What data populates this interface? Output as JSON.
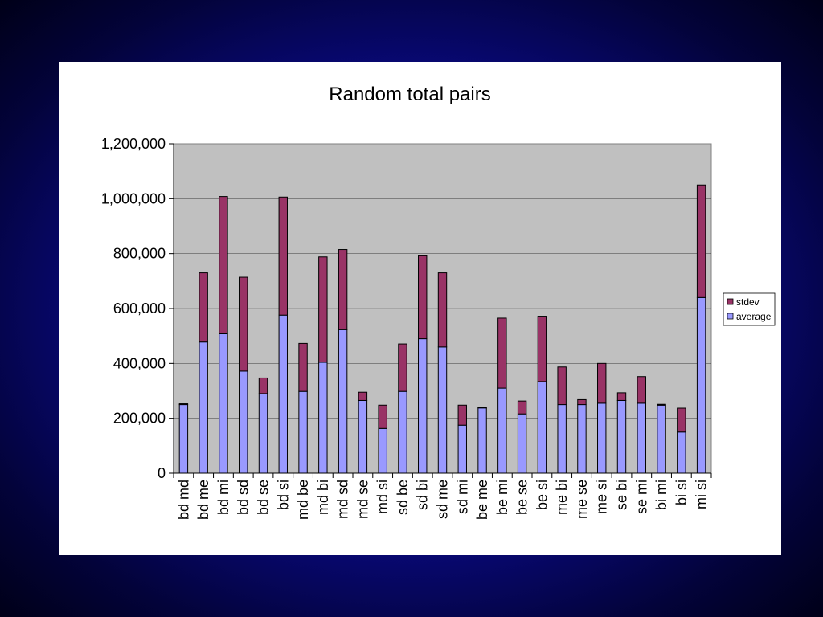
{
  "chart_data": {
    "type": "bar",
    "stacked": true,
    "title": "Random total pairs",
    "xlabel": "",
    "ylabel": "",
    "ylim": [
      0,
      1200000
    ],
    "yticks": [
      0,
      200000,
      400000,
      600000,
      800000,
      1000000,
      1200000
    ],
    "ytick_labels": [
      "0",
      "200,000",
      "400,000",
      "600,000",
      "800,000",
      "1,000,000",
      "1,200,000"
    ],
    "grid": true,
    "legend_position": "right",
    "categories": [
      "bd md",
      "bd me",
      "bd mi",
      "bd sd",
      "bd se",
      "bd si",
      "md be",
      "md bi",
      "md sd",
      "md se",
      "md si",
      "sd be",
      "sd bi",
      "sd me",
      "sd mi",
      "be me",
      "be mi",
      "be se",
      "be si",
      "me bi",
      "me se",
      "me si",
      "se bi",
      "se mi",
      "bi mi",
      "bi si",
      "mi si"
    ],
    "series": [
      {
        "name": "average",
        "color": "#9999ff",
        "values": [
          250000,
          478000,
          508000,
          372000,
          290000,
          576000,
          298000,
          404000,
          523000,
          265000,
          163000,
          298000,
          490000,
          460000,
          175000,
          238000,
          310000,
          216000,
          334000,
          250000,
          250000,
          255000,
          265000,
          255000,
          248000,
          150000,
          640000
        ]
      },
      {
        "name": "stdev",
        "color": "#993366",
        "values": [
          3000,
          252000,
          500000,
          342000,
          57000,
          430000,
          175000,
          384000,
          292000,
          30000,
          85000,
          173000,
          302000,
          270000,
          73000,
          2000,
          255000,
          47000,
          238000,
          137000,
          18000,
          145000,
          28000,
          97000,
          3000,
          87000,
          410000
        ]
      }
    ]
  }
}
